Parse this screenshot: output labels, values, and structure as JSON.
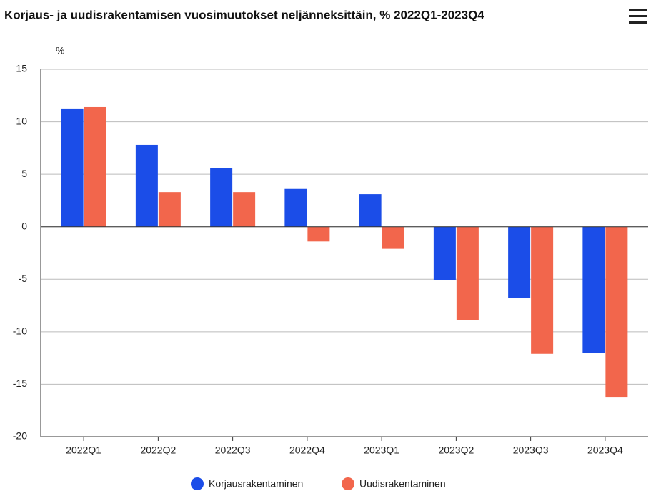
{
  "chart_data": {
    "type": "bar",
    "title": "Korjaus- ja uudisrakentamisen vuosimuutokset neljänneksittäin, % 2022Q1-2023Q4",
    "y_label": "%",
    "categories": [
      "2022Q1",
      "2022Q2",
      "2022Q3",
      "2022Q4",
      "2023Q1",
      "2023Q2",
      "2023Q3",
      "2023Q4"
    ],
    "series": [
      {
        "name": "Korjausrakentaminen",
        "color": "#1b4de8",
        "values": [
          11.2,
          7.8,
          5.6,
          3.6,
          3.1,
          -5.1,
          -6.8,
          -12.0
        ]
      },
      {
        "name": "Uudisrakentaminen",
        "color": "#f2664c",
        "values": [
          11.4,
          3.3,
          3.3,
          -1.4,
          -2.1,
          -8.9,
          -12.1,
          -16.2
        ]
      }
    ],
    "ylim": [
      -20,
      15
    ],
    "yticks": [
      -20,
      -15,
      -10,
      -5,
      0,
      5,
      10,
      15
    ],
    "grid": true,
    "legend": "bottom"
  }
}
